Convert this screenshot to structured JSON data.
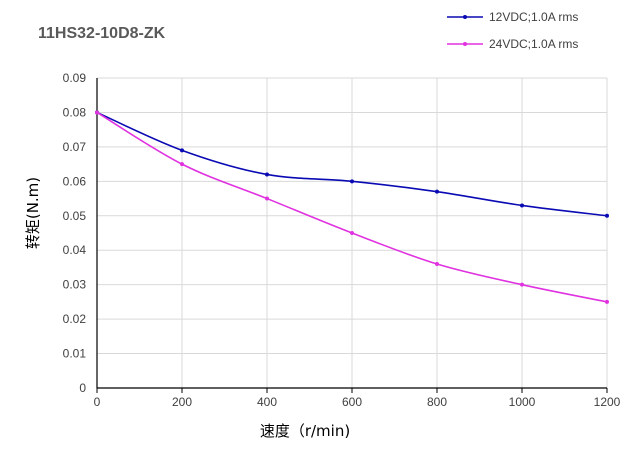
{
  "chart_data": {
    "type": "line",
    "title": "11HS32-10D8-ZK",
    "xlabel": "速度（r/min)",
    "ylabel": "转矩(N.m)",
    "x": [
      0,
      200,
      400,
      600,
      800,
      1000,
      1200
    ],
    "xlim": [
      0,
      1200
    ],
    "ylim": [
      0,
      0.09
    ],
    "x_ticks": [
      "0",
      "200",
      "400",
      "600",
      "800",
      "1000",
      "1200"
    ],
    "y_ticks": [
      "0",
      "0.01",
      "0.02",
      "0.03",
      "0.04",
      "0.05",
      "0.06",
      "0.07",
      "0.08",
      "0.09"
    ],
    "grid": true,
    "legend_position": "top-right",
    "series": [
      {
        "name": "12VDC;1.0A rms",
        "color": "#0a0ab4",
        "values": [
          0.08,
          0.069,
          0.062,
          0.06,
          0.057,
          0.053,
          0.05
        ]
      },
      {
        "name": "24VDC;1.0A rms",
        "color": "#e032e0",
        "values": [
          0.08,
          0.065,
          0.055,
          0.045,
          0.036,
          0.03,
          0.025
        ]
      }
    ]
  }
}
